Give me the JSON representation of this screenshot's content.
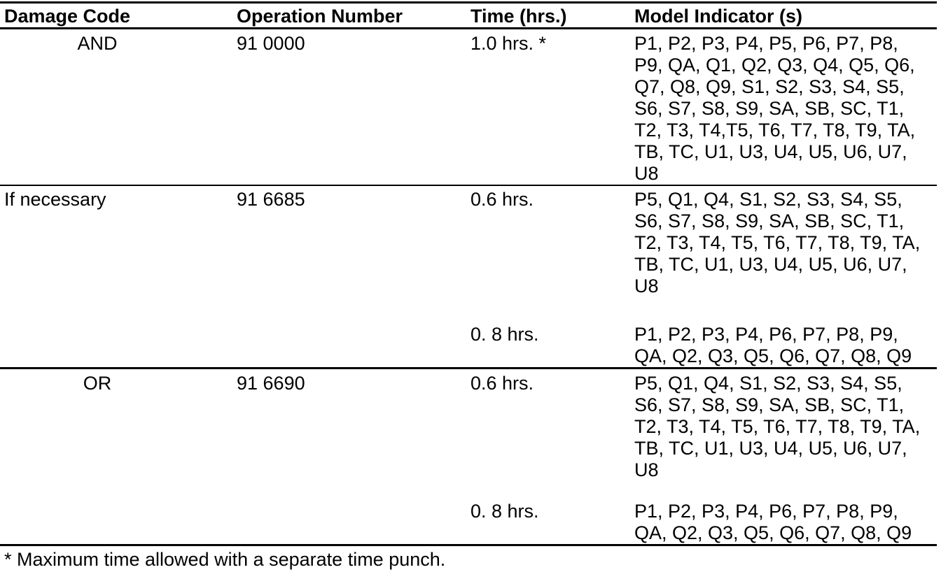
{
  "table": {
    "headers": [
      "Damage Code",
      "Operation Number",
      "Time (hrs.)",
      "Model Indicator (s)"
    ],
    "rows": [
      {
        "damage_code": "AND",
        "operation_number": "91 0000",
        "entries": [
          {
            "time": "1.0 hrs. *",
            "models": [
              "P1, P2, P3, P4, P5, P6, P7, P8,",
              "P9, QA, Q1, Q2, Q3, Q4, Q5, Q6,",
              "Q7, Q8, Q9, S1, S2, S3, S4, S5,",
              "S6, S7, S8, S9, SA, SB, SC, T1,",
              "T2, T3, T4,T5, T6, T7, T8, T9, TA,",
              "TB, TC, U1, U3, U4, U5, U6, U7,",
              "U8"
            ]
          }
        ]
      },
      {
        "damage_code": "If necessary",
        "operation_number": "91 6685",
        "entries": [
          {
            "time": "0.6 hrs.",
            "models": [
              "P5, Q1, Q4, S1, S2, S3, S4, S5,",
              "S6, S7, S8, S9, SA, SB, SC, T1,",
              "T2, T3, T4, T5, T6, T7, T8, T9, TA,",
              "TB, TC, U1, U3, U4, U5, U6, U7,",
              "U8"
            ]
          },
          {
            "time": "0. 8 hrs.",
            "models": [
              "P1, P2, P3, P4, P6, P7, P8, P9,",
              "QA, Q2, Q3, Q5, Q6, Q7, Q8, Q9"
            ]
          }
        ]
      },
      {
        "damage_code": "OR",
        "operation_number": "91 6690",
        "entries": [
          {
            "time": "0.6 hrs.",
            "models": [
              "P5, Q1, Q4, S1, S2, S3, S4, S5,",
              "S6, S7, S8, S9, SA, SB, SC, T1,",
              "T2, T3, T4, T5, T6, T7, T8, T9, TA,",
              "TB, TC, U1, U3, U4, U5, U6, U7,",
              "U8"
            ]
          },
          {
            "time": "0. 8 hrs.",
            "models": [
              "P1, P2, P3, P4, P6, P7, P8, P9,",
              "QA, Q2, Q3, Q5, Q6, Q7, Q8, Q9"
            ]
          }
        ]
      }
    ],
    "footnote": "* Maximum time allowed with a separate time punch."
  }
}
